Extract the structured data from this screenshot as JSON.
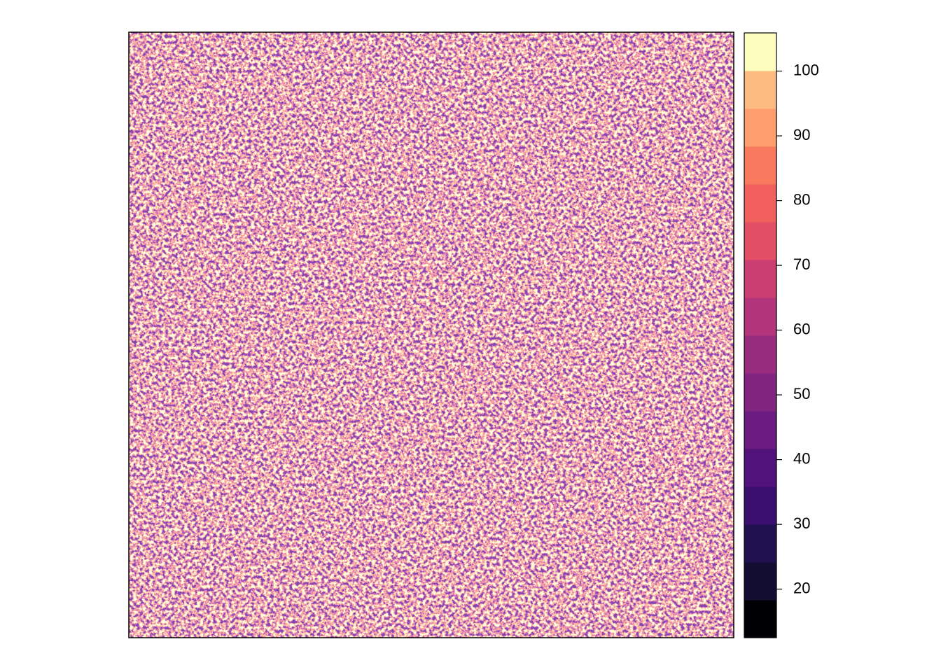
{
  "chart_data": {
    "type": "raster",
    "zlim": [
      12.5,
      105.9
    ],
    "zticks": [
      20,
      30,
      40,
      50,
      60,
      70,
      80,
      90,
      100
    ],
    "colors": [
      "#000004",
      "#120D31",
      "#221150",
      "#3B0F70",
      "#51127C",
      "#6A1C81",
      "#812581",
      "#982D80",
      "#B2357B",
      "#CA3E72",
      "#E24F64",
      "#F1605D",
      "#F8795E",
      "#FE9F6D",
      "#FEBB81",
      "#FCFDBF"
    ]
  }
}
